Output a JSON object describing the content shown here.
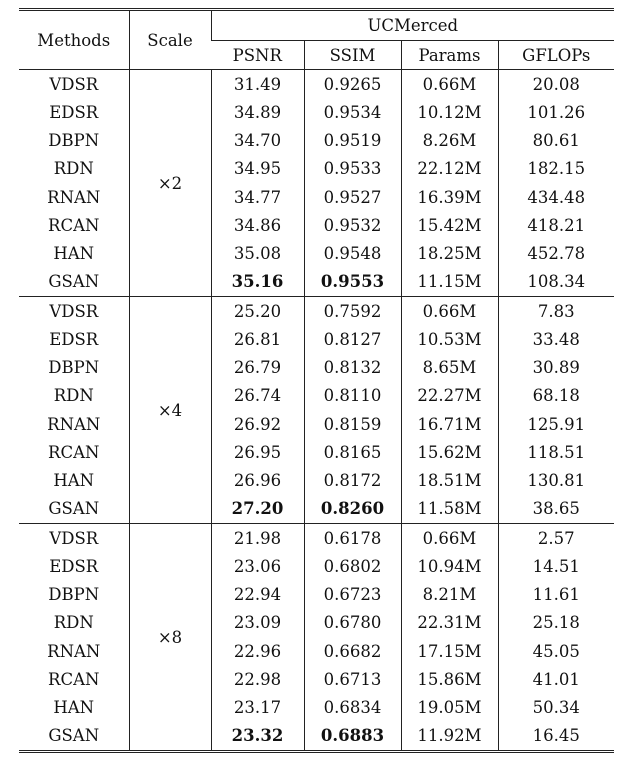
{
  "table": {
    "headers": {
      "methods": "Methods",
      "scale": "Scale",
      "dataset": "UCMerced",
      "metrics": [
        "PSNR",
        "SSIM",
        "Params",
        "GFLOPs"
      ]
    },
    "groups": [
      {
        "scale": "×2",
        "rows": [
          {
            "method": "VDSR",
            "psnr": "31.49",
            "ssim": "0.9265",
            "params": "0.66M",
            "gflops": "20.08"
          },
          {
            "method": "EDSR",
            "psnr": "34.89",
            "ssim": "0.9534",
            "params": "10.12M",
            "gflops": "101.26"
          },
          {
            "method": "DBPN",
            "psnr": "34.70",
            "ssim": "0.9519",
            "params": "8.26M",
            "gflops": "80.61"
          },
          {
            "method": "RDN",
            "psnr": "34.95",
            "ssim": "0.9533",
            "params": "22.12M",
            "gflops": "182.15"
          },
          {
            "method": "RNAN",
            "psnr": "34.77",
            "ssim": "0.9527",
            "params": "16.39M",
            "gflops": "434.48"
          },
          {
            "method": "RCAN",
            "psnr": "34.86",
            "ssim": "0.9532",
            "params": "15.42M",
            "gflops": "418.21"
          },
          {
            "method": "HAN",
            "psnr": "35.08",
            "ssim": "0.9548",
            "params": "18.25M",
            "gflops": "452.78"
          },
          {
            "method": "GSAN",
            "psnr": "35.16",
            "ssim": "0.9553",
            "params": "11.15M",
            "gflops": "108.34",
            "best": true
          }
        ]
      },
      {
        "scale": "×4",
        "rows": [
          {
            "method": "VDSR",
            "psnr": "25.20",
            "ssim": "0.7592",
            "params": "0.66M",
            "gflops": "7.83"
          },
          {
            "method": "EDSR",
            "psnr": "26.81",
            "ssim": "0.8127",
            "params": "10.53M",
            "gflops": "33.48"
          },
          {
            "method": "DBPN",
            "psnr": "26.79",
            "ssim": "0.8132",
            "params": "8.65M",
            "gflops": "30.89"
          },
          {
            "method": "RDN",
            "psnr": "26.74",
            "ssim": "0.8110",
            "params": "22.27M",
            "gflops": "68.18"
          },
          {
            "method": "RNAN",
            "psnr": "26.92",
            "ssim": "0.8159",
            "params": "16.71M",
            "gflops": "125.91"
          },
          {
            "method": "RCAN",
            "psnr": "26.95",
            "ssim": "0.8165",
            "params": "15.62M",
            "gflops": "118.51"
          },
          {
            "method": "HAN",
            "psnr": "26.96",
            "ssim": "0.8172",
            "params": "18.51M",
            "gflops": "130.81"
          },
          {
            "method": "GSAN",
            "psnr": "27.20",
            "ssim": "0.8260",
            "params": "11.58M",
            "gflops": "38.65",
            "best": true
          }
        ]
      },
      {
        "scale": "×8",
        "rows": [
          {
            "method": "VDSR",
            "psnr": "21.98",
            "ssim": "0.6178",
            "params": "0.66M",
            "gflops": "2.57"
          },
          {
            "method": "EDSR",
            "psnr": "23.06",
            "ssim": "0.6802",
            "params": "10.94M",
            "gflops": "14.51"
          },
          {
            "method": "DBPN",
            "psnr": "22.94",
            "ssim": "0.6723",
            "params": "8.21M",
            "gflops": "11.61"
          },
          {
            "method": "RDN",
            "psnr": "23.09",
            "ssim": "0.6780",
            "params": "22.31M",
            "gflops": "25.18"
          },
          {
            "method": "RNAN",
            "psnr": "22.96",
            "ssim": "0.6682",
            "params": "17.15M",
            "gflops": "45.05"
          },
          {
            "method": "RCAN",
            "psnr": "22.98",
            "ssim": "0.6713",
            "params": "15.86M",
            "gflops": "41.01"
          },
          {
            "method": "HAN",
            "psnr": "23.17",
            "ssim": "0.6834",
            "params": "19.05M",
            "gflops": "50.34"
          },
          {
            "method": "GSAN",
            "psnr": "23.32",
            "ssim": "0.6883",
            "params": "11.92M",
            "gflops": "16.45",
            "best": true
          }
        ]
      }
    ]
  }
}
